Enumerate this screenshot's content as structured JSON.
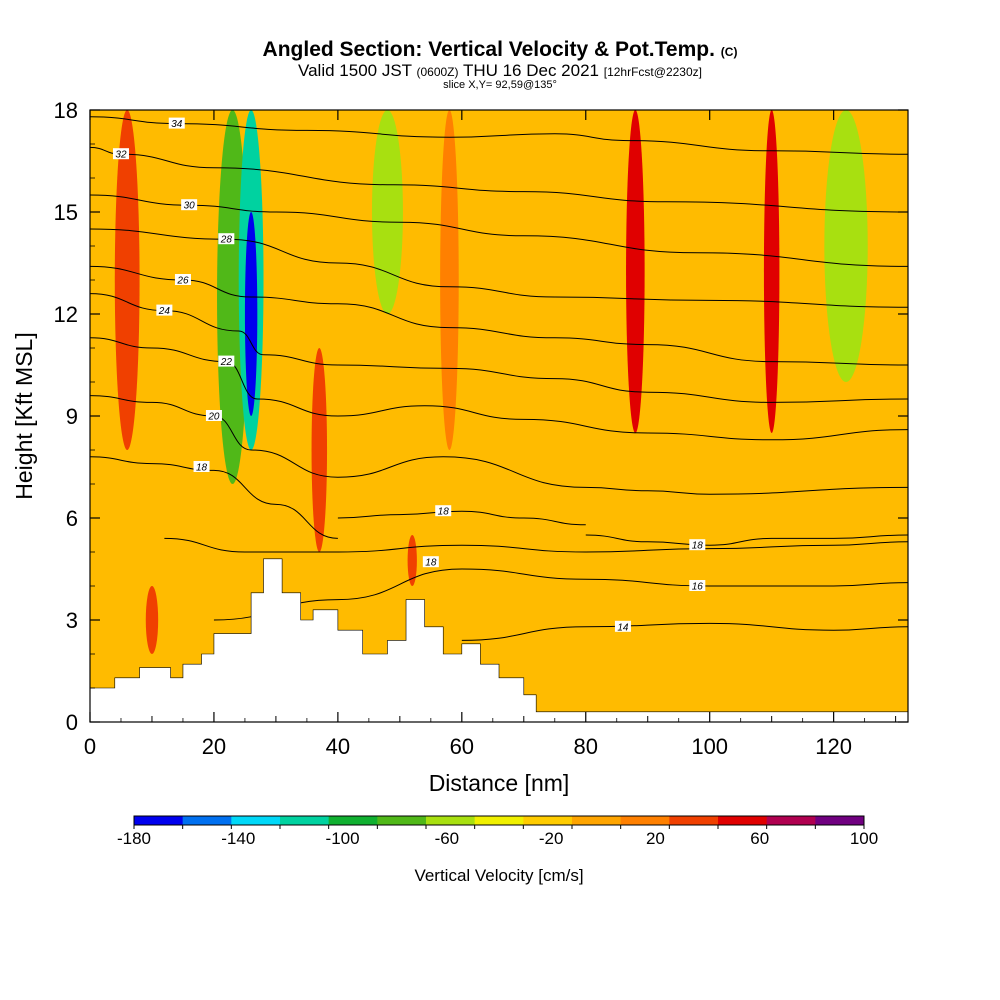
{
  "chart_data": {
    "type": "heatmap",
    "title": "Angled Section: Vertical Velocity & Pot.Temp.",
    "title_mark": "(C)",
    "subtitle": {
      "valid": "Valid 1500 JST",
      "utc": "(0600Z)",
      "date": "THU 16 Dec 2021",
      "forecast": "[12hrFcst@2230z]"
    },
    "slice_label": "slice X,Y= 92,59@135°",
    "xlabel": "Distance [nm]",
    "ylabel": "Height [Kft MSL]",
    "xlim": [
      0,
      132
    ],
    "ylim": [
      0,
      18
    ],
    "x_ticks": [
      "0",
      "20",
      "40",
      "60",
      "80",
      "100",
      "120"
    ],
    "y_ticks": [
      "0",
      "3",
      "6",
      "9",
      "12",
      "15",
      "18"
    ],
    "colorbar": {
      "label": "Vertical Velocity [cm/s]",
      "tick_labels": [
        "-180",
        "-140",
        "-100",
        "-60",
        "-20",
        "20",
        "60",
        "100"
      ],
      "levels": [
        -180,
        -160,
        -140,
        -120,
        -100,
        -80,
        -60,
        -40,
        -20,
        0,
        20,
        40,
        60,
        80,
        100
      ],
      "colors": [
        "#0000ee",
        "#0070f0",
        "#00d8f8",
        "#00d2a0",
        "#10b030",
        "#50b818",
        "#a8e010",
        "#f0f000",
        "#ffcc00",
        "#ffa500",
        "#ff8000",
        "#f04000",
        "#e00000",
        "#b00050",
        "#700080"
      ]
    },
    "background_color": "#ffbb00",
    "vertical_velocity_bands": [
      {
        "x_center": 6,
        "width": 4,
        "y_range": [
          8,
          18
        ],
        "value": 50
      },
      {
        "x_center": 23,
        "width": 5,
        "y_range": [
          7,
          18
        ],
        "value": -70
      },
      {
        "x_center": 26,
        "width": 4,
        "y_range": [
          8,
          18
        ],
        "value": -120
      },
      {
        "x_center": 26,
        "width": 2,
        "y_range": [
          9,
          15
        ],
        "value": -180
      },
      {
        "x_center": 37,
        "width": 2.5,
        "y_range": [
          5,
          11
        ],
        "value": 50
      },
      {
        "x_center": 48,
        "width": 5,
        "y_range": [
          12,
          18
        ],
        "value": -50
      },
      {
        "x_center": 58,
        "width": 3,
        "y_range": [
          8,
          18
        ],
        "value": 30
      },
      {
        "x_center": 88,
        "width": 3,
        "y_range": [
          8.5,
          18
        ],
        "value": 60
      },
      {
        "x_center": 110,
        "width": 2.5,
        "y_range": [
          8.5,
          18
        ],
        "value": 60
      },
      {
        "x_center": 122,
        "width": 7,
        "y_range": [
          10,
          18
        ],
        "value": -50
      },
      {
        "x_center": 10,
        "width": 2,
        "y_range": [
          2,
          4
        ],
        "value": 50
      },
      {
        "x_center": 52,
        "width": 1.5,
        "y_range": [
          4,
          5.5
        ],
        "value": 50
      }
    ],
    "terrain": {
      "x": [
        0,
        4,
        8,
        13,
        15,
        18,
        20,
        24,
        26,
        28,
        31,
        34,
        36,
        40,
        44,
        48,
        51,
        54,
        57,
        60,
        63,
        66,
        70,
        72,
        132
      ],
      "height": [
        1.0,
        1.3,
        1.6,
        1.3,
        1.7,
        2.0,
        2.6,
        2.6,
        3.8,
        4.8,
        3.8,
        3.0,
        3.3,
        2.7,
        2.0,
        2.4,
        3.6,
        2.8,
        2.0,
        2.3,
        1.7,
        1.3,
        0.8,
        0.3,
        0.3
      ]
    },
    "potential_temperature_contours": [
      {
        "value": 14,
        "label": "14",
        "label_pos": [
          86,
          2.8
        ],
        "x": [
          60,
          80,
          100,
          120,
          132
        ],
        "height": [
          2.4,
          2.8,
          2.9,
          2.7,
          2.8
        ]
      },
      {
        "value": 16,
        "label": "16",
        "label_pos": [
          98,
          4.0
        ],
        "x": [
          20,
          40,
          60,
          80,
          100,
          120,
          132
        ],
        "height": [
          3.0,
          3.6,
          4.5,
          4.2,
          4.0,
          4.0,
          4.1
        ]
      },
      {
        "value": 18,
        "label": "18",
        "label_pos": [
          55,
          4.7
        ],
        "x": [
          12,
          25,
          40,
          60,
          80,
          100,
          120,
          132
        ],
        "height": [
          5.4,
          5.0,
          5.0,
          5.2,
          5.0,
          5.1,
          5.2,
          5.3
        ]
      },
      {
        "value": 18,
        "label": "18",
        "label_pos": [
          18,
          7.5
        ],
        "x": [
          0,
          10,
          20,
          30,
          40
        ],
        "height": [
          7.8,
          7.6,
          7.4,
          6.4,
          5.4
        ]
      },
      {
        "value": 18,
        "label": "18",
        "label_pos": [
          98,
          5.2
        ],
        "x": [
          80,
          90,
          100,
          110,
          120,
          132
        ],
        "height": [
          5.5,
          5.3,
          5.2,
          5.4,
          5.4,
          5.5
        ]
      },
      {
        "value": 18,
        "label": "18",
        "label_pos": [
          57,
          6.2
        ],
        "x": [
          40,
          50,
          60,
          70,
          80
        ],
        "height": [
          6.0,
          6.1,
          6.2,
          6.0,
          5.8
        ]
      },
      {
        "value": 20,
        "label": "20",
        "label_pos": [
          20,
          9.0
        ],
        "x": [
          0,
          10,
          20,
          26,
          40,
          57,
          80,
          90,
          100,
          132
        ],
        "height": [
          9.6,
          9.4,
          9.0,
          8.0,
          7.2,
          7.8,
          6.9,
          6.8,
          6.7,
          6.9
        ]
      },
      {
        "value": 22,
        "label": "22",
        "label_pos": [
          22,
          10.6
        ],
        "x": [
          0,
          10,
          22,
          27,
          40,
          54,
          70,
          90,
          110,
          132
        ],
        "height": [
          11.3,
          11.0,
          10.6,
          9.5,
          9.0,
          9.3,
          8.9,
          8.5,
          8.3,
          8.6
        ]
      },
      {
        "value": 24,
        "label": "24",
        "label_pos": [
          12,
          12.1
        ],
        "x": [
          0,
          12,
          24,
          28,
          40,
          58,
          75,
          90,
          110,
          132
        ],
        "height": [
          12.6,
          12.1,
          11.5,
          10.8,
          10.5,
          10.4,
          10.1,
          9.7,
          9.4,
          9.5
        ]
      },
      {
        "value": 26,
        "label": "26",
        "label_pos": [
          15,
          13.0
        ],
        "x": [
          0,
          15,
          26,
          40,
          58,
          75,
          90,
          110,
          132
        ],
        "height": [
          13.4,
          13.0,
          12.5,
          12.3,
          11.6,
          11.3,
          11.1,
          10.6,
          10.5
        ]
      },
      {
        "value": 28,
        "label": "28",
        "label_pos": [
          22,
          14.2
        ],
        "x": [
          0,
          22,
          40,
          58,
          75,
          100,
          132
        ],
        "height": [
          14.5,
          14.2,
          13.5,
          12.8,
          12.5,
          12.4,
          12.2
        ]
      },
      {
        "value": 30,
        "label": "30",
        "label_pos": [
          16,
          15.2
        ],
        "x": [
          0,
          16,
          30,
          50,
          70,
          98,
          132
        ],
        "height": [
          15.5,
          15.2,
          15.0,
          14.7,
          14.3,
          13.8,
          13.4
        ]
      },
      {
        "value": 32,
        "label": "32",
        "label_pos": [
          5,
          16.7
        ],
        "x": [
          0,
          5,
          20,
          49,
          70,
          93,
          132
        ],
        "height": [
          16.9,
          16.7,
          16.3,
          15.8,
          15.6,
          15.3,
          15.0
        ]
      },
      {
        "value": 34,
        "label": "34",
        "label_pos": [
          14,
          17.6
        ],
        "x": [
          0,
          14,
          35,
          58,
          75,
          87,
          110,
          132
        ],
        "height": [
          17.8,
          17.6,
          17.4,
          17.2,
          17.3,
          17.1,
          16.8,
          16.7
        ]
      }
    ]
  }
}
